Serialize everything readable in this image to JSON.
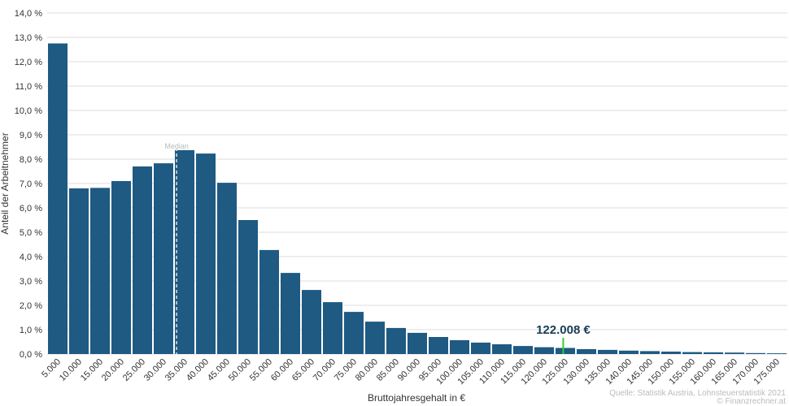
{
  "chart_data": {
    "type": "bar",
    "x_label": "Bruttojahresgehalt in €",
    "y_label": "Anteil der Arbeitnehmer",
    "source": "Quelle: Statistik Austria, Lohnsteuerstatistik 2021",
    "credit": "© Finanzrechner.at",
    "color": "#1e5a82",
    "categories": [
      "5.000",
      "10.000",
      "15.000",
      "20.000",
      "25.000",
      "30.000",
      "35.000",
      "40.000",
      "45.000",
      "50.000",
      "55.000",
      "60.000",
      "65.000",
      "70.000",
      "75.000",
      "80.000",
      "85.000",
      "90.000",
      "95.000",
      "100.000",
      "105.000",
      "110.000",
      "115.000",
      "120.000",
      "125.000",
      "130.000",
      "135.000",
      "140.000",
      "145.000",
      "150.000",
      "155.000",
      "160.000",
      "165.000",
      "170.000",
      "175.000"
    ],
    "values": [
      12.75,
      6.8,
      6.82,
      7.1,
      7.7,
      7.83,
      8.37,
      8.23,
      7.03,
      5.5,
      4.27,
      3.33,
      2.63,
      2.13,
      1.73,
      1.33,
      1.07,
      0.87,
      0.7,
      0.57,
      0.47,
      0.4,
      0.33,
      0.28,
      0.25,
      0.2,
      0.17,
      0.14,
      0.12,
      0.1,
      0.08,
      0.07,
      0.06,
      0.04,
      0.03
    ],
    "xlim": [
      0,
      175000
    ],
    "ylim": [
      0,
      14
    ],
    "yticks": [
      {
        "value": 0,
        "label": "0,0 %"
      },
      {
        "value": 1,
        "label": "1,0 %"
      },
      {
        "value": 2,
        "label": "2,0 %"
      },
      {
        "value": 3,
        "label": "3,0 %"
      },
      {
        "value": 4,
        "label": "4,0 %"
      },
      {
        "value": 5,
        "label": "5,0 %"
      },
      {
        "value": 6,
        "label": "6,0 %"
      },
      {
        "value": 7,
        "label": "7,0 %"
      },
      {
        "value": 8,
        "label": "8,0 %"
      },
      {
        "value": 9,
        "label": "9,0 %"
      },
      {
        "value": 10,
        "label": "10,0 %"
      },
      {
        "value": 11,
        "label": "11,0 %"
      },
      {
        "value": 12,
        "label": "12,0 %"
      },
      {
        "value": 13,
        "label": "13,0 %"
      },
      {
        "value": 14,
        "label": "14,0 %"
      }
    ],
    "grid": true,
    "median": {
      "label": "Median",
      "value": 30600,
      "color": "#dddddd"
    },
    "highlight": {
      "label": "122.008 €",
      "value": 122008,
      "color": "#33cc33"
    }
  }
}
